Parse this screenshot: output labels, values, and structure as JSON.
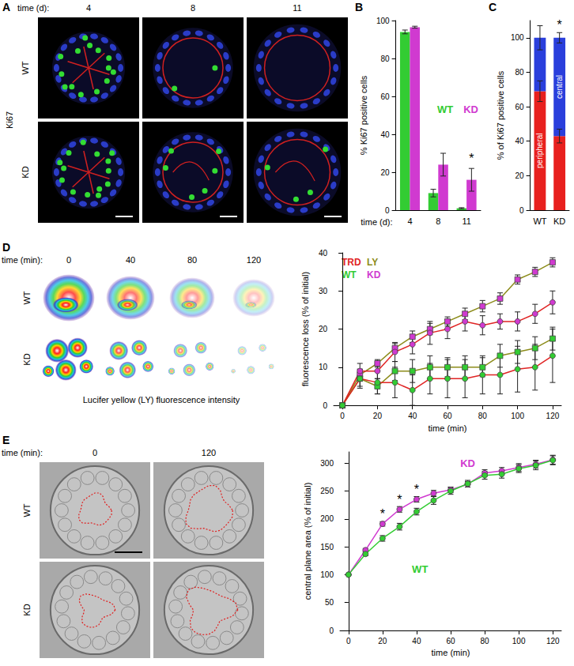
{
  "panels": [
    {
      "panel": "A",
      "stain": "Ki67",
      "column_header": "time (d):",
      "columns": [
        "4",
        "8",
        "11"
      ],
      "rows": [
        "WT",
        "KD"
      ]
    },
    {
      "panel": "D",
      "column_header": "time (min):",
      "columns": [
        "0",
        "40",
        "80",
        "120"
      ],
      "rows": [
        "WT",
        "KD"
      ],
      "caption": "Lucifer yellow (LY) fluorescence intensity"
    },
    {
      "panel": "E",
      "column_header": "time (min):",
      "columns": [
        "0",
        "120"
      ],
      "rows": [
        "WT",
        "KD"
      ]
    }
  ],
  "chart_data": [
    {
      "panel": "B",
      "type": "bar",
      "ylabel": "% Ki67 positive cells",
      "xlabel": "time (d):",
      "categories": [
        "4",
        "8",
        "11"
      ],
      "series": [
        {
          "name": "WT",
          "color": "#33cc33",
          "values": [
            94,
            9,
            1
          ],
          "errors": [
            1,
            2,
            0.3
          ]
        },
        {
          "name": "KD",
          "color": "#d03ad0",
          "values": [
            96.5,
            24,
            16
          ],
          "errors": [
            0.5,
            6,
            6
          ]
        }
      ],
      "ylim": [
        0,
        100
      ],
      "yticks": [
        0,
        20,
        40,
        60,
        80,
        100
      ],
      "legend": "right",
      "annotations": [
        {
          "text": "*",
          "category": "11",
          "series": "KD",
          "y": 24
        }
      ]
    },
    {
      "panel": "C",
      "type": "bar",
      "stacked": true,
      "ylabel": "% of Ki67 positive cells",
      "categories": [
        "WT",
        "KD"
      ],
      "series": [
        {
          "name": "peripheral",
          "color": "#e8201e",
          "values": [
            69,
            43
          ],
          "errors": [
            6,
            4
          ]
        },
        {
          "name": "central",
          "color": "#2a3fdc",
          "values": [
            31,
            57
          ],
          "errors": [
            7,
            3
          ]
        }
      ],
      "ylim": [
        0,
        110
      ],
      "yticks": [
        0,
        20,
        40,
        60,
        80,
        100
      ],
      "annotations": [
        {
          "text": "*",
          "category": "KD",
          "y": 104
        }
      ]
    },
    {
      "panel": "D",
      "type": "line",
      "xlabel": "time (min)",
      "ylabel": "fluorescence loss (% of initial)",
      "x": [
        0,
        10,
        20,
        30,
        40,
        50,
        60,
        70,
        80,
        90,
        100,
        110,
        120
      ],
      "legend": "top-left",
      "legend_items": [
        {
          "text": "TRD",
          "color": "#e02424"
        },
        {
          "text": "LY",
          "color": "#8c8c1a"
        },
        {
          "text": "WT",
          "color": "#33cc33"
        },
        {
          "text": "KD",
          "color": "#d03ad0"
        }
      ],
      "series": [
        {
          "dye": "LY",
          "genotype": "KD",
          "marker": "square",
          "values": [
            0,
            8,
            11,
            15,
            18,
            20,
            22,
            24,
            26,
            28,
            33,
            35,
            37.5
          ],
          "errors": [
            0,
            1.5,
            1,
            1.2,
            1.5,
            1.5,
            1.2,
            1.5,
            1.5,
            1.5,
            1.2,
            1.2,
            1.2
          ]
        },
        {
          "dye": "TRD",
          "genotype": "KD",
          "marker": "circle",
          "values": [
            0,
            9,
            9,
            14,
            16,
            19,
            20,
            22,
            21,
            22,
            22,
            24,
            27
          ],
          "errors": [
            0,
            2,
            2,
            2.5,
            2.5,
            3,
            2.5,
            2.5,
            2.5,
            2,
            2.5,
            2.5,
            3
          ]
        },
        {
          "dye": "LY",
          "genotype": "WT",
          "marker": "square",
          "values": [
            0,
            7,
            5,
            9,
            9,
            10,
            10,
            10,
            10,
            13,
            14,
            15,
            17.5
          ],
          "errors": [
            0,
            2.5,
            2,
            2.5,
            3,
            3,
            2.5,
            3,
            2.5,
            3,
            3,
            3,
            3
          ]
        },
        {
          "dye": "TRD",
          "genotype": "WT",
          "marker": "circle",
          "values": [
            0,
            7,
            6,
            6,
            4,
            7,
            7,
            7,
            8,
            8,
            9.5,
            10,
            13
          ],
          "errors": [
            0,
            2,
            3,
            4,
            4,
            4,
            5,
            5,
            5,
            5,
            6,
            6,
            7
          ]
        }
      ],
      "xlim": [
        -5,
        125
      ],
      "xticks": [
        0,
        20,
        40,
        60,
        80,
        100,
        120
      ],
      "ylim": [
        0,
        40
      ],
      "yticks": [
        0,
        10,
        20,
        30,
        40
      ]
    },
    {
      "panel": "E",
      "type": "line",
      "xlabel": "time (min)",
      "ylabel": "central plane area (% of initial)",
      "x": [
        0,
        10,
        20,
        30,
        40,
        50,
        60,
        70,
        80,
        90,
        100,
        110,
        120
      ],
      "series": [
        {
          "name": "KD",
          "color": "#d03ad0",
          "marker": "circle",
          "label_at": [
            70,
            290
          ],
          "values": [
            100,
            144,
            191,
            217,
            235,
            246,
            252,
            262,
            282,
            286,
            292,
            298,
            306
          ],
          "errors": [
            0,
            3,
            4,
            5,
            5,
            5,
            5,
            5,
            6,
            6,
            7,
            7,
            8
          ]
        },
        {
          "name": "WT",
          "color": "#33cc33",
          "marker": "circle",
          "label_at": [
            42,
            100
          ],
          "values": [
            100,
            137,
            165,
            186,
            213,
            233,
            250,
            263,
            278,
            280,
            290,
            296,
            305
          ],
          "errors": [
            0,
            3,
            5,
            6,
            6,
            7,
            6,
            6,
            7,
            7,
            7,
            8,
            8
          ]
        }
      ],
      "xlim": [
        -5,
        125
      ],
      "xticks": [
        0,
        20,
        40,
        60,
        80,
        100,
        120
      ],
      "ylim": [
        0,
        320
      ],
      "yticks": [
        0,
        50,
        100,
        150,
        200,
        250,
        300
      ],
      "annotations": [
        {
          "text": "*",
          "x": 20,
          "y": 197
        },
        {
          "text": "*",
          "x": 30,
          "y": 223
        },
        {
          "text": "*",
          "x": 40,
          "y": 242
        }
      ]
    }
  ]
}
